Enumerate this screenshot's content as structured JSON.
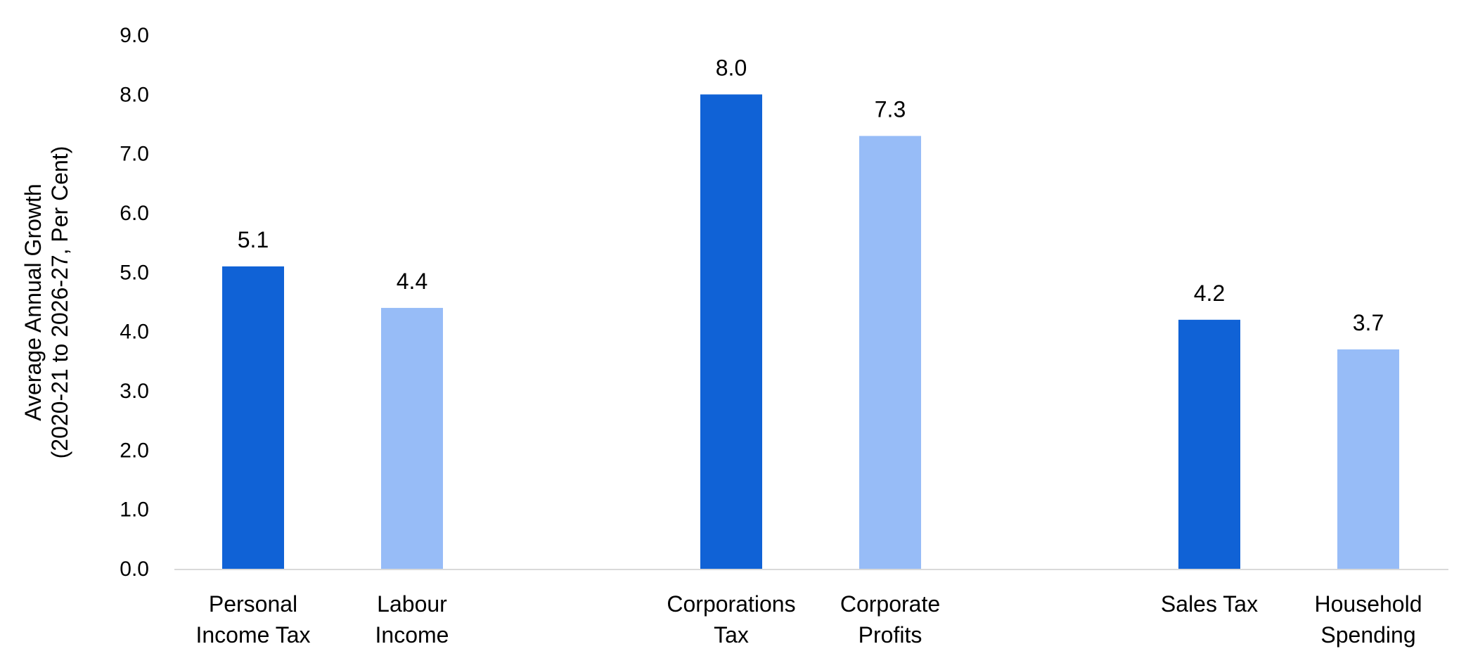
{
  "chart_data": {
    "type": "bar",
    "ylabel_lines": [
      "Average Annual Growth",
      "(2020-21 to 2026-27, Per Cent)"
    ],
    "ylim": [
      0,
      9
    ],
    "yticks": [
      "0.0",
      "1.0",
      "2.0",
      "3.0",
      "4.0",
      "5.0",
      "6.0",
      "7.0",
      "8.0",
      "9.0"
    ],
    "grid": false,
    "legend": "none",
    "bars": [
      {
        "label_lines": [
          "Personal",
          "Income Tax"
        ],
        "value": 5.1,
        "value_label": "5.1",
        "color": "#1062D6"
      },
      {
        "label_lines": [
          "Labour",
          "Income"
        ],
        "value": 4.4,
        "value_label": "4.4",
        "color": "#97BCF7"
      },
      {
        "label_lines": [
          "Corporations",
          "Tax"
        ],
        "value": 8.0,
        "value_label": "8.0",
        "color": "#1062D6"
      },
      {
        "label_lines": [
          "Corporate",
          "Profits"
        ],
        "value": 7.3,
        "value_label": "7.3",
        "color": "#97BCF7"
      },
      {
        "label_lines": [
          "Sales Tax"
        ],
        "value": 4.2,
        "value_label": "4.2",
        "color": "#1062D6"
      },
      {
        "label_lines": [
          "Household",
          "Spending"
        ],
        "value": 3.7,
        "value_label": "3.7",
        "color": "#97BCF7"
      }
    ],
    "colors": {
      "revenue": "#1062D6",
      "base": "#97BCF7",
      "axis": "#D9D9D9"
    }
  }
}
